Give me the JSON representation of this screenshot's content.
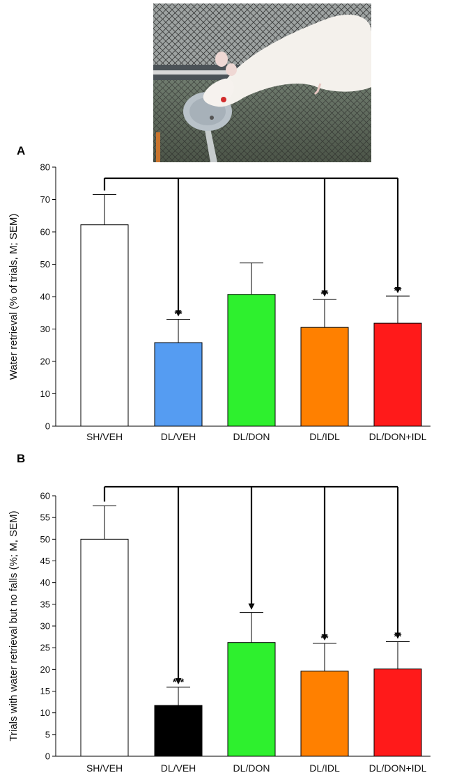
{
  "figure": {
    "colors": {
      "white": "#ffffff",
      "blue": "#559cf2",
      "green": "#2ef02e",
      "orange": "#ff8000",
      "red": "#ff1a1a",
      "black": "#000000",
      "photo_bg": "#5a6065",
      "rat": "#f4f1ec"
    }
  },
  "chart_data": [
    {
      "panel": "A",
      "type": "bar",
      "categories": [
        "SH/VEH",
        "DL/VEH",
        "DL/DON",
        "DL/IDL",
        "DL/DON+IDL"
      ],
      "values": [
        62.2,
        25.8,
        40.7,
        30.5,
        31.8
      ],
      "errors": [
        9.3,
        7.2,
        9.7,
        8.6,
        8.4
      ],
      "colors": [
        "#ffffff",
        "#559cf2",
        "#2ef02e",
        "#ff8000",
        "#ff1a1a"
      ],
      "significance": [
        "",
        "**",
        "",
        "**",
        "**"
      ],
      "comparison_reference": "SH/VEH",
      "compared_to": [
        "DL/VEH",
        "DL/IDL",
        "DL/DON+IDL"
      ],
      "ylabel": "Water retrieval (% of trials, M; SEM)",
      "ylim": [
        0,
        80
      ],
      "yticks": [
        "0",
        "10",
        "20",
        "30",
        "40",
        "50",
        "60",
        "70",
        "80"
      ],
      "grid": false,
      "legend": "none"
    },
    {
      "panel": "B",
      "type": "bar",
      "categories": [
        "SH/VEH",
        "DL/VEH",
        "DL/DON",
        "DL/IDL",
        "DL/DON+IDL"
      ],
      "values": [
        50.0,
        11.7,
        26.2,
        19.6,
        20.1
      ],
      "errors": [
        7.7,
        4.2,
        6.9,
        6.4,
        6.3
      ],
      "colors": [
        "#ffffff",
        "#000000",
        "#2ef02e",
        "#ff8000",
        "#ff1a1a"
      ],
      "significance": [
        "",
        "***",
        "*",
        "**",
        "**"
      ],
      "comparison_reference": "SH/VEH",
      "compared_to": [
        "DL/VEH",
        "DL/DON",
        "DL/IDL",
        "DL/DON+IDL"
      ],
      "ylabel": "Trials with water retrieval but no falls (%; M, SEM)",
      "ylim": [
        0,
        60
      ],
      "yticks": [
        "0",
        "5",
        "10",
        "15",
        "20",
        "25",
        "30",
        "35",
        "40",
        "45",
        "50",
        "55",
        "60"
      ],
      "grid": false,
      "legend": "none"
    }
  ]
}
